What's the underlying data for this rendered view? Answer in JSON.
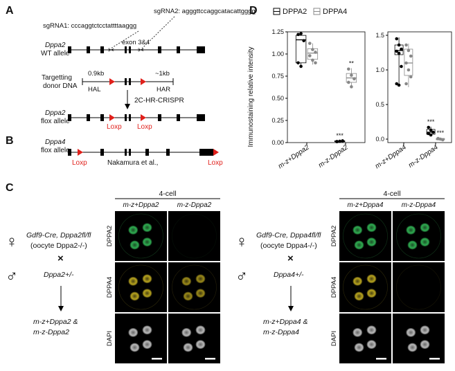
{
  "panel_labels": {
    "a": "A",
    "b": "B",
    "c": "C",
    "d": "D"
  },
  "panel_a": {
    "sgrna1_prefix": "sgRNA1: ",
    "sgrna1_seq": "cccaggtctcctattttaa",
    "sgrna1_pam": "ggg",
    "sgrna2_prefix": "sgRNA2: ",
    "sgrna2_seq": "agggttccaggcatacatt",
    "sgrna2_pam": "gggg",
    "exon_label": "exon 3&4",
    "wt_gene": "Dppa2",
    "wt_allele": "WT allele",
    "donor_line1": "Targetting",
    "donor_line2": "donor DNA",
    "hal_size": "0.9kb",
    "hal_label": "HAL",
    "har_size": "~1kb",
    "har_label": "HAR",
    "method": "2C-HR-CRISPR",
    "flox_gene": "Dppa2",
    "flox_allele": "flox allele",
    "loxp1": "Loxp",
    "loxp2": "Loxp"
  },
  "panel_b": {
    "gene": "Dppa4",
    "allele": "flox allele",
    "loxp_left": "Loxp",
    "loxp_right": "Loxp",
    "citation": "Nakamura et al.,"
  },
  "panel_c": {
    "left": {
      "female_symbol": "♀",
      "male_symbol": "♂",
      "cross_symbol": "×",
      "female_genotype": "Gdf9-Cre, Dppa2fl/fl",
      "oocyte": "(oocyte Dppa2-/-)",
      "male_genotype": "Dppa2+/-",
      "result_line1": "m-z+Dppa2 &",
      "result_line2": "m-z-Dppa2",
      "stage": "4-cell",
      "col1": "m-z+Dppa2",
      "col2": "m-z-Dppa2",
      "row1": "DPPA2",
      "row2": "DPPA4",
      "row3": "DAPI"
    },
    "right": {
      "female_symbol": "♀",
      "male_symbol": "♂",
      "cross_symbol": "×",
      "female_genotype": "Gdf9-Cre, Dppa4fl/fl",
      "oocyte": "(oocyte Dppa4-/-)",
      "male_genotype": "Dppa4+/-",
      "result_line1": "m-z+Dppa4 &",
      "result_line2": "m-z-Dppa4",
      "stage": "4-cell",
      "col1": "m-z+Dppa4",
      "col2": "m-z-Dppa4",
      "row1": "DPPA2",
      "row2": "DPPA4",
      "row3": "DAPI"
    }
  },
  "chart_data": [
    {
      "type": "box",
      "title": "",
      "ylabel": "Immunostaining relative intensity",
      "ylim": [
        0,
        1.25
      ],
      "yticks": [
        "0.00",
        "0.25",
        "0.50",
        "0.75",
        "1.00",
        "1.25"
      ],
      "legend": [
        {
          "name": "DPPA2",
          "color": "#000000"
        },
        {
          "name": "DPPA4",
          "color": "#888888"
        }
      ],
      "legend_position": "top",
      "categories": [
        "m-z+Dppa2",
        "m-z-Dppa2"
      ],
      "series": [
        {
          "name": "DPPA2",
          "color": "#000000",
          "groups": [
            {
              "category": "m-z+Dppa2",
              "q1": 0.9,
              "median": 1.16,
              "q3": 1.21,
              "min": 0.86,
              "max": 1.23,
              "points": [
                1.22,
                1.23,
                1.15,
                0.9,
                0.86
              ],
              "sig": ""
            },
            {
              "category": "m-z-Dppa2",
              "q1": 0.01,
              "median": 0.015,
              "q3": 0.02,
              "min": 0.005,
              "max": 0.025,
              "points": [
                0.01,
                0.015,
                0.02,
                0.012
              ],
              "sig": "***"
            }
          ]
        },
        {
          "name": "DPPA4",
          "color": "#888888",
          "groups": [
            {
              "category": "m-z+Dppa2",
              "q1": 0.94,
              "median": 1.01,
              "q3": 1.06,
              "min": 0.88,
              "max": 1.12,
              "points": [
                1.12,
                1.05,
                1.02,
                0.98,
                0.93,
                0.9
              ],
              "sig": ""
            },
            {
              "category": "m-z-Dppa2",
              "q1": 0.68,
              "median": 0.73,
              "q3": 0.78,
              "min": 0.62,
              "max": 0.84,
              "points": [
                0.83,
                0.76,
                0.72,
                0.68,
                0.63
              ],
              "sig": "**"
            }
          ]
        }
      ]
    },
    {
      "type": "box",
      "title": "",
      "ylabel": "",
      "ylim": [
        -0.05,
        1.55
      ],
      "yticks": [
        "0.0",
        "0.5",
        "1.0",
        "1.5"
      ],
      "categories": [
        "m-z+Dppa4",
        "m-z-Dppa4"
      ],
      "series": [
        {
          "name": "DPPA2",
          "color": "#000000",
          "groups": [
            {
              "category": "m-z+Dppa4",
              "q1": 1.22,
              "median": 1.28,
              "q3": 1.36,
              "min": 0.78,
              "max": 1.47,
              "points": [
                1.45,
                1.36,
                1.3,
                1.27,
                1.24,
                1.05,
                0.8,
                0.78
              ],
              "sig": ""
            },
            {
              "category": "m-z-Dppa4",
              "q1": 0.07,
              "median": 0.1,
              "q3": 0.14,
              "min": 0.05,
              "max": 0.18,
              "points": [
                0.17,
                0.13,
                0.1,
                0.08,
                0.06
              ],
              "sig": "***"
            }
          ]
        },
        {
          "name": "DPPA4",
          "color": "#888888",
          "groups": [
            {
              "category": "m-z+Dppa4",
              "q1": 0.92,
              "median": 1.1,
              "q3": 1.3,
              "min": 0.75,
              "max": 1.38,
              "points": [
                1.36,
                1.28,
                1.2,
                1.1,
                1.0,
                0.9,
                0.8
              ],
              "sig": ""
            },
            {
              "category": "m-z-Dppa4",
              "q1": -0.01,
              "median": 0.0,
              "q3": 0.01,
              "min": -0.02,
              "max": 0.02,
              "points": [
                0.01,
                0.0,
                -0.01,
                0.005
              ],
              "sig": "***"
            }
          ]
        }
      ]
    }
  ]
}
